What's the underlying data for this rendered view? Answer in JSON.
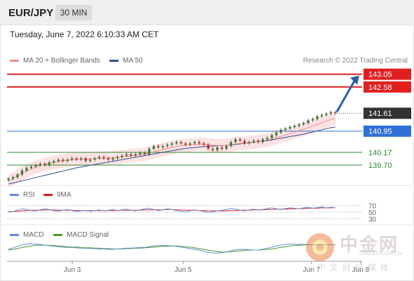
{
  "header": {
    "symbol": "EUR/JPY",
    "timeframe": "30 MIN"
  },
  "datetime": "Tuesday, June 7, 2022 6:10:33 AM CET",
  "legend": {
    "ma20": {
      "label": "MA 20 + Bollinger Bands",
      "color": "#f28c8c"
    },
    "ma50": {
      "label": "MA 50",
      "color": "#2f4f8f"
    },
    "research": "Research © 2022 Trading Central"
  },
  "chart_data": [
    {
      "type": "candlestick",
      "title": "EUR/JPY",
      "ylim": [
        139.0,
        143.3
      ],
      "x_ticks": [
        "Jun 3",
        "Jun 5",
        "Jun 7",
        "Jun 8"
      ],
      "levels": [
        {
          "value": 143.05,
          "label": "143.05",
          "kind": "resistance",
          "color": "#e02020"
        },
        {
          "value": 142.58,
          "label": "142.58",
          "kind": "resistance",
          "color": "#e02020"
        },
        {
          "value": 141.61,
          "label": "141.61",
          "kind": "last-price",
          "color": "#333333"
        },
        {
          "value": 140.95,
          "label": "140.95",
          "kind": "pivot",
          "color": "#2f6fd6"
        },
        {
          "value": 140.17,
          "label": "140.17",
          "kind": "support",
          "color": "#2e8b2e"
        },
        {
          "value": 139.7,
          "label": "139.70",
          "kind": "support",
          "color": "#2e8b2e"
        }
      ],
      "close": [
        139.2,
        139.25,
        139.35,
        139.5,
        139.6,
        139.65,
        139.7,
        139.75,
        139.7,
        139.8,
        139.85,
        139.9,
        139.85,
        139.9,
        139.95,
        139.9,
        139.95,
        139.85,
        139.9,
        139.95,
        140.0,
        139.95,
        139.9,
        139.95,
        140.0,
        140.05,
        140.1,
        140.05,
        140.1,
        140.15,
        140.1,
        140.3,
        140.4,
        140.35,
        140.4,
        140.45,
        140.5,
        140.55,
        140.5,
        140.45,
        140.5,
        140.55,
        140.5,
        140.45,
        140.3,
        140.25,
        140.35,
        140.3,
        140.4,
        140.55,
        140.65,
        140.6,
        140.5,
        140.55,
        140.6,
        140.55,
        140.65,
        140.7,
        140.8,
        140.9,
        141.0,
        141.05,
        141.1,
        141.15,
        141.2,
        141.25,
        141.35,
        141.4,
        141.5,
        141.55,
        141.6,
        141.65,
        141.61
      ],
      "ma20": [
        139.1,
        139.2,
        139.3,
        139.4,
        139.48,
        139.55,
        139.62,
        139.68,
        139.72,
        139.76,
        139.8,
        139.83,
        139.86,
        139.88,
        139.9,
        139.91,
        139.92,
        139.93,
        139.93,
        139.94,
        139.95,
        139.95,
        139.96,
        139.97,
        139.98,
        140.0,
        140.02,
        140.04,
        140.06,
        140.08,
        140.1,
        140.14,
        140.19,
        140.23,
        140.27,
        140.31,
        140.35,
        140.38,
        140.41,
        140.43,
        140.44,
        140.46,
        140.47,
        140.47,
        140.45,
        140.43,
        140.42,
        140.42,
        140.43,
        140.45,
        140.48,
        140.5,
        140.51,
        140.53,
        140.55,
        140.56,
        140.59,
        140.62,
        140.66,
        140.71,
        140.76,
        140.81,
        140.86,
        140.91,
        140.97,
        141.02,
        141.08,
        141.14,
        141.2,
        141.26,
        141.32,
        141.38,
        141.42
      ],
      "ma50": [
        139.0,
        139.04,
        139.08,
        139.12,
        139.16,
        139.2,
        139.24,
        139.28,
        139.32,
        139.36,
        139.4,
        139.44,
        139.48,
        139.52,
        139.56,
        139.6,
        139.63,
        139.66,
        139.69,
        139.72,
        139.75,
        139.78,
        139.81,
        139.84,
        139.87,
        139.9,
        139.93,
        139.96,
        139.99,
        140.02,
        140.05,
        140.08,
        140.11,
        140.14,
        140.17,
        140.2,
        140.23,
        140.26,
        140.29,
        140.31,
        140.33,
        140.35,
        140.37,
        140.38,
        140.39,
        140.4,
        140.41,
        140.42,
        140.43,
        140.44,
        140.46,
        140.48,
        140.5,
        140.52,
        140.54,
        140.56,
        140.58,
        140.6,
        140.63,
        140.66,
        140.69,
        140.72,
        140.75,
        140.78,
        140.81,
        140.84,
        140.88,
        140.92,
        140.96,
        141.0,
        141.04,
        141.08,
        141.1
      ]
    },
    {
      "type": "line",
      "name": "rsi-panel",
      "legend": [
        {
          "label": "RSI",
          "color": "#5b8fd6"
        },
        {
          "label": "9MA",
          "color": "#e02020"
        }
      ],
      "y_ticks": [
        70,
        50,
        30
      ],
      "ylim": [
        20,
        80
      ],
      "series": [
        {
          "name": "RSI",
          "values": [
            50,
            52,
            56,
            60,
            58,
            55,
            54,
            57,
            60,
            58,
            55,
            53,
            56,
            58,
            55,
            52,
            54,
            56,
            53,
            55,
            57,
            54,
            56,
            58,
            55,
            57,
            59,
            56,
            54,
            57,
            60,
            62,
            58,
            55,
            57,
            60,
            58,
            55,
            53,
            50,
            54,
            57,
            55,
            52,
            49,
            51,
            54,
            56,
            58,
            61,
            59,
            56,
            54,
            57,
            59,
            56,
            58,
            61,
            63,
            60,
            58,
            61,
            63,
            62,
            60,
            63,
            65,
            62,
            64,
            66,
            63,
            65,
            63
          ]
        },
        {
          "name": "9MA",
          "values": [
            52,
            52,
            53,
            54,
            55,
            56,
            56,
            56,
            57,
            57,
            57,
            56,
            56,
            56,
            56,
            55,
            55,
            55,
            55,
            55,
            55,
            55,
            55,
            55,
            55,
            56,
            56,
            56,
            56,
            56,
            57,
            57,
            57,
            57,
            57,
            58,
            58,
            57,
            57,
            56,
            56,
            56,
            55,
            55,
            54,
            54,
            54,
            54,
            54,
            55,
            55,
            56,
            56,
            56,
            57,
            57,
            57,
            58,
            58,
            59,
            59,
            59,
            60,
            60,
            61,
            61,
            62,
            62,
            62,
            63,
            63,
            63,
            64
          ]
        }
      ]
    },
    {
      "type": "line",
      "name": "macd-panel",
      "legend": [
        {
          "label": "MACD",
          "color": "#5b8fd6"
        },
        {
          "label": "MACD Signal",
          "color": "#4a9a2a"
        }
      ],
      "ylim": [
        -0.3,
        0.3
      ],
      "series": [
        {
          "name": "MACD",
          "values": [
            0.02,
            0.06,
            0.1,
            0.14,
            0.16,
            0.17,
            0.16,
            0.15,
            0.13,
            0.12,
            0.1,
            0.09,
            0.08,
            0.07,
            0.07,
            0.06,
            0.05,
            0.05,
            0.04,
            0.04,
            0.03,
            0.03,
            0.02,
            0.02,
            0.03,
            0.04,
            0.05,
            0.05,
            0.06,
            0.07,
            0.07,
            0.09,
            0.11,
            0.12,
            0.12,
            0.12,
            0.11,
            0.1,
            0.08,
            0.06,
            0.04,
            0.02,
            0.0,
            -0.03,
            -0.06,
            -0.08,
            -0.08,
            -0.07,
            -0.05,
            -0.02,
            0.01,
            0.02,
            0.02,
            0.01,
            0.0,
            0.0,
            0.02,
            0.05,
            0.08,
            0.11,
            0.13,
            0.15,
            0.16,
            0.16,
            0.15,
            0.15,
            0.15,
            0.14,
            0.14,
            0.14,
            0.14,
            0.14,
            0.14
          ]
        },
        {
          "name": "MACD Signal",
          "values": [
            0.0,
            0.02,
            0.04,
            0.07,
            0.09,
            0.11,
            0.13,
            0.13,
            0.13,
            0.13,
            0.12,
            0.11,
            0.1,
            0.09,
            0.08,
            0.08,
            0.07,
            0.06,
            0.06,
            0.05,
            0.05,
            0.04,
            0.04,
            0.03,
            0.03,
            0.03,
            0.04,
            0.04,
            0.05,
            0.05,
            0.06,
            0.07,
            0.08,
            0.09,
            0.1,
            0.1,
            0.11,
            0.11,
            0.1,
            0.09,
            0.08,
            0.06,
            0.04,
            0.02,
            0.0,
            -0.02,
            -0.04,
            -0.05,
            -0.05,
            -0.04,
            -0.03,
            -0.02,
            -0.01,
            0.0,
            0.0,
            0.0,
            0.01,
            0.02,
            0.03,
            0.05,
            0.07,
            0.09,
            0.11,
            0.12,
            0.13,
            0.14,
            0.14,
            0.14,
            0.14,
            0.14,
            0.14,
            0.14,
            0.14
          ]
        }
      ]
    }
  ],
  "watermark": {
    "cn_name": "中金网",
    "url": "CNGOLD.COM.CN",
    "subtitle": "中文财经媒体"
  }
}
